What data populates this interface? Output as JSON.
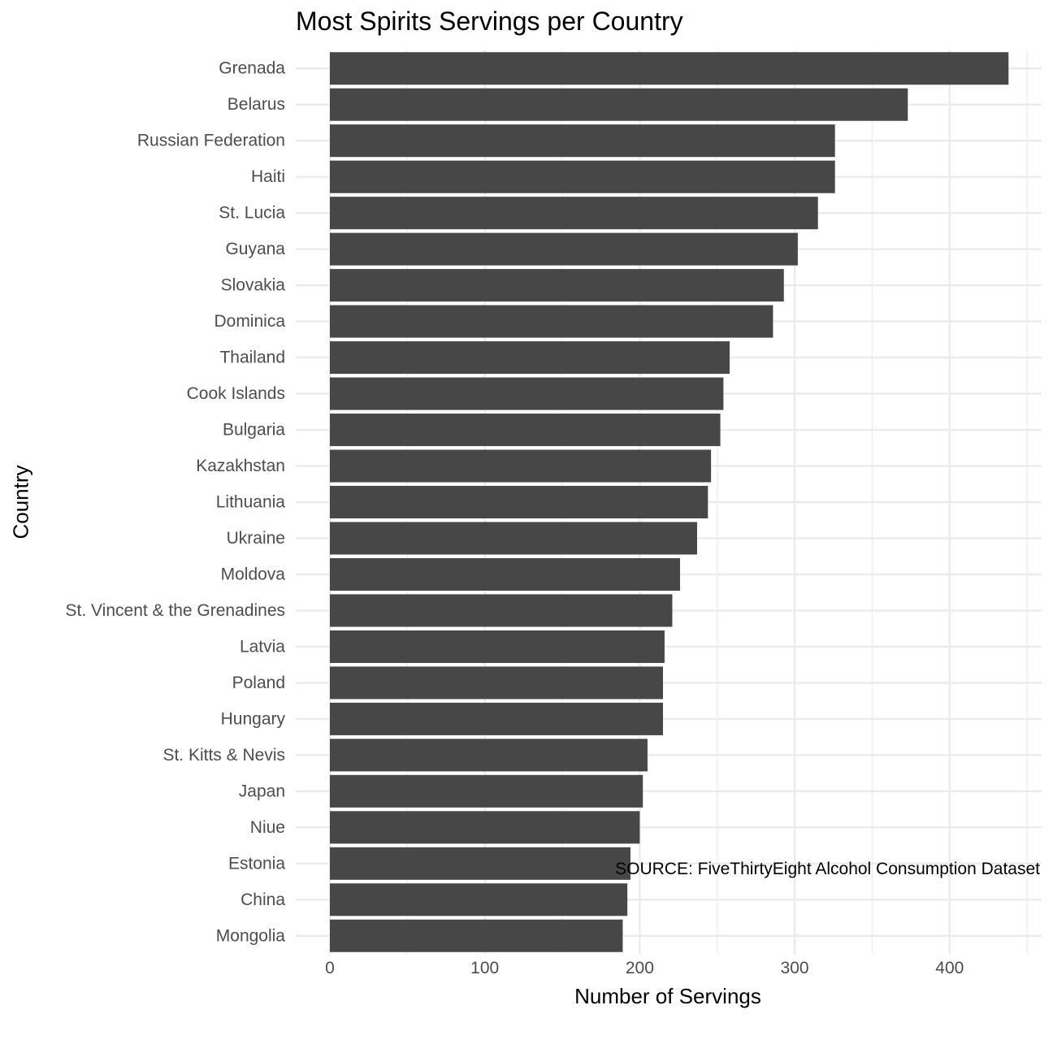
{
  "chart_data": {
    "type": "bar",
    "orientation": "horizontal",
    "title": "Most Spirits Servings per Country",
    "xlabel": "Number of Servings",
    "ylabel": "Country",
    "caption": "SOURCE: FiveThirtyEight Alcohol Consumption Dataset",
    "xlim": [
      0,
      450
    ],
    "x_ticks": [
      0,
      100,
      200,
      300,
      400
    ],
    "grid": true,
    "bar_color": "#474747",
    "grid_color": "#ebebeb",
    "categories": [
      "Grenada",
      "Belarus",
      "Russian Federation",
      "Haiti",
      "St. Lucia",
      "Guyana",
      "Slovakia",
      "Dominica",
      "Thailand",
      "Cook Islands",
      "Bulgaria",
      "Kazakhstan",
      "Lithuania",
      "Ukraine",
      "Moldova",
      "St. Vincent & the Grenadines",
      "Latvia",
      "Poland",
      "Hungary",
      "St. Kitts & Nevis",
      "Japan",
      "Niue",
      "Estonia",
      "China",
      "Mongolia"
    ],
    "values": [
      438,
      373,
      326,
      326,
      315,
      302,
      293,
      286,
      258,
      254,
      252,
      246,
      244,
      237,
      226,
      221,
      216,
      215,
      215,
      205,
      202,
      200,
      194,
      192,
      189
    ]
  }
}
